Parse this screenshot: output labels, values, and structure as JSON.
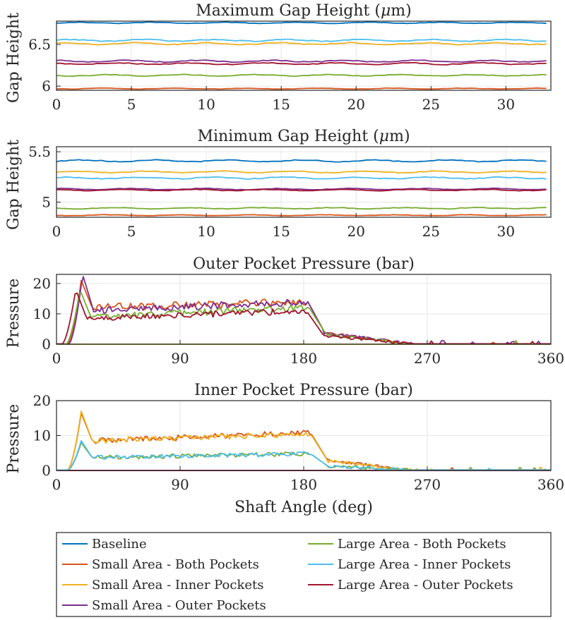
{
  "colors": {
    "baseline": "#0072BD",
    "small_both": "#D95319",
    "small_inner": "#EDB120",
    "small_outer": "#7E2F8E",
    "large_both": "#77AC30",
    "large_inner": "#4DBEEE",
    "large_outer": "#A2142F"
  },
  "legend": {
    "entries": [
      {
        "key": "baseline",
        "label": "Baseline"
      },
      {
        "key": "small_both",
        "label": "Small Area - Both Pockets"
      },
      {
        "key": "small_inner",
        "label": "Small Area - Inner Pockets"
      },
      {
        "key": "small_outer",
        "label": "Small Area - Outer Pockets"
      },
      {
        "key": "large_both",
        "label": "Large Area - Both Pockets"
      },
      {
        "key": "large_inner",
        "label": "Large Area - Inner Pockets"
      },
      {
        "key": "large_outer",
        "label": "Large Area - Outer Pockets"
      }
    ]
  },
  "chart_data": [
    {
      "type": "line",
      "title_parts": [
        "Maximum Gap Height (",
        "μ",
        "m)"
      ],
      "title": "Maximum Gap Height (μm)",
      "ylabel": "Gap Height",
      "xlabel": "",
      "xlim": [
        0,
        33
      ],
      "ylim": [
        5.95,
        6.78
      ],
      "xticks": [
        0,
        5,
        10,
        15,
        20,
        25,
        30
      ],
      "xtick_labels": [
        "0",
        "5",
        "10",
        "15",
        "20",
        "25",
        "30"
      ],
      "yticks": [
        6,
        6.5
      ],
      "ytick_labels": [
        "6",
        "6.5"
      ],
      "series": [
        {
          "key": "baseline",
          "name": "Baseline",
          "level": 6.76,
          "wiggle": 0.006
        },
        {
          "key": "large_inner",
          "name": "Large Area - Inner Pockets",
          "level": 6.55,
          "wiggle": 0.01
        },
        {
          "key": "small_inner",
          "name": "Small Area - Inner Pockets",
          "level": 6.51,
          "wiggle": 0.01
        },
        {
          "key": "small_outer",
          "name": "Small Area - Outer Pockets",
          "level": 6.3,
          "wiggle": 0.01
        },
        {
          "key": "large_outer",
          "name": "Large Area - Outer Pockets",
          "level": 6.27,
          "wiggle": 0.01
        },
        {
          "key": "large_both",
          "name": "Large Area - Both Pockets",
          "level": 6.13,
          "wiggle": 0.008
        },
        {
          "key": "small_both",
          "name": "Small Area - Both Pockets",
          "level": 5.97,
          "wiggle": 0.005
        }
      ]
    },
    {
      "type": "line",
      "title_parts": [
        "Minimum Gap Height (",
        "μ",
        "m)"
      ],
      "title": "Minimum Gap Height (μm)",
      "ylabel": "Gap Height",
      "xlabel": "",
      "xlim": [
        0,
        33
      ],
      "ylim": [
        4.85,
        5.55
      ],
      "xticks": [
        0,
        5,
        10,
        15,
        20,
        25,
        30
      ],
      "xtick_labels": [
        "0",
        "5",
        "10",
        "15",
        "20",
        "25",
        "30"
      ],
      "yticks": [
        5,
        5.5
      ],
      "ytick_labels": [
        "5",
        "5.5"
      ],
      "series": [
        {
          "key": "baseline",
          "name": "Baseline",
          "level": 5.41,
          "wiggle": 0.008
        },
        {
          "key": "small_inner",
          "name": "Small Area - Inner Pockets",
          "level": 5.3,
          "wiggle": 0.007
        },
        {
          "key": "large_inner",
          "name": "Large Area - Inner Pockets",
          "level": 5.24,
          "wiggle": 0.008
        },
        {
          "key": "small_outer",
          "name": "Small Area - Outer Pockets",
          "level": 5.13,
          "wiggle": 0.006
        },
        {
          "key": "large_outer",
          "name": "Large Area - Outer Pockets",
          "level": 5.12,
          "wiggle": 0.006
        },
        {
          "key": "large_both",
          "name": "Large Area - Both Pockets",
          "level": 4.94,
          "wiggle": 0.006
        },
        {
          "key": "small_both",
          "name": "Small Area - Both Pockets",
          "level": 4.87,
          "wiggle": 0.004
        }
      ]
    },
    {
      "type": "line",
      "title": "Outer Pocket Pressure (bar)",
      "ylabel": "Pressure",
      "xlabel": "",
      "xlim": [
        0,
        360
      ],
      "ylim": [
        0,
        23
      ],
      "xticks": [
        0,
        90,
        180,
        270,
        360
      ],
      "xtick_labels": [
        "0",
        "90",
        "180",
        "270",
        "360"
      ],
      "yticks": [
        0,
        10,
        20
      ],
      "ytick_labels": [
        "0",
        "10",
        "20"
      ],
      "series": [
        {
          "key": "baseline",
          "name": "Baseline",
          "profile": "zero"
        },
        {
          "key": "large_inner",
          "name": "Large Area - Inner Pockets",
          "profile": "zero"
        },
        {
          "key": "small_inner",
          "name": "Small Area - Inner Pockets",
          "profile": "zero"
        },
        {
          "key": "small_both",
          "name": "Small Area - Both Pockets",
          "profile": "pulse",
          "peak_x": 18,
          "peak": 21,
          "plateau_start": 12,
          "plateau_end": 14,
          "drop_x": 183,
          "noise": 1.3
        },
        {
          "key": "small_outer",
          "name": "Small Area - Outer Pockets",
          "profile": "pulse",
          "peak_x": 19,
          "peak": 23,
          "plateau_start": 11,
          "plateau_end": 14,
          "drop_x": 183,
          "noise": 1.2
        },
        {
          "key": "large_both",
          "name": "Large Area - Both Pockets",
          "profile": "pulse",
          "peak_x": 17,
          "peak": 18,
          "plateau_start": 9,
          "plateau_end": 12,
          "drop_x": 184,
          "noise": 1.1
        },
        {
          "key": "large_outer",
          "name": "Large Area - Outer Pockets",
          "profile": "pulse",
          "peak_x": 14,
          "peak": 18,
          "plateau_start": 8.5,
          "plateau_end": 11,
          "drop_x": 182,
          "noise": 1.0
        }
      ]
    },
    {
      "type": "line",
      "title": "Inner Pocket Pressure (bar)",
      "ylabel": "Pressure",
      "xlabel": "Shaft Angle (deg)",
      "xlim": [
        0,
        360
      ],
      "ylim": [
        0,
        20
      ],
      "xticks": [
        0,
        90,
        180,
        270,
        360
      ],
      "xtick_labels": [
        "0",
        "90",
        "180",
        "270",
        "360"
      ],
      "yticks": [
        0,
        10,
        20
      ],
      "ytick_labels": [
        "0",
        "10",
        "20"
      ],
      "series": [
        {
          "key": "baseline",
          "name": "Baseline",
          "profile": "zero"
        },
        {
          "key": "small_outer",
          "name": "Small Area - Outer Pockets",
          "profile": "zero"
        },
        {
          "key": "large_outer",
          "name": "Large Area - Outer Pockets",
          "profile": "zero"
        },
        {
          "key": "small_both",
          "name": "Small Area - Both Pockets",
          "profile": "pulse",
          "peak_x": 18,
          "peak": 16.5,
          "plateau_start": 8.5,
          "plateau_end": 10.8,
          "drop_x": 185,
          "noise": 0.8
        },
        {
          "key": "small_inner",
          "name": "Small Area - Inner Pockets",
          "profile": "pulse",
          "peak_x": 18,
          "peak": 17,
          "plateau_start": 8.5,
          "plateau_end": 10.5,
          "drop_x": 185,
          "noise": 0.8
        },
        {
          "key": "large_both",
          "name": "Large Area - Both Pockets",
          "profile": "pulse",
          "peak_x": 18,
          "peak": 8,
          "plateau_start": 3.7,
          "plateau_end": 4.8,
          "drop_x": 185,
          "noise": 0.6
        },
        {
          "key": "large_inner",
          "name": "Large Area - Inner Pockets",
          "profile": "pulse",
          "peak_x": 18,
          "peak": 8.5,
          "plateau_start": 3.7,
          "plateau_end": 4.8,
          "drop_x": 185,
          "noise": 0.6
        }
      ]
    }
  ]
}
